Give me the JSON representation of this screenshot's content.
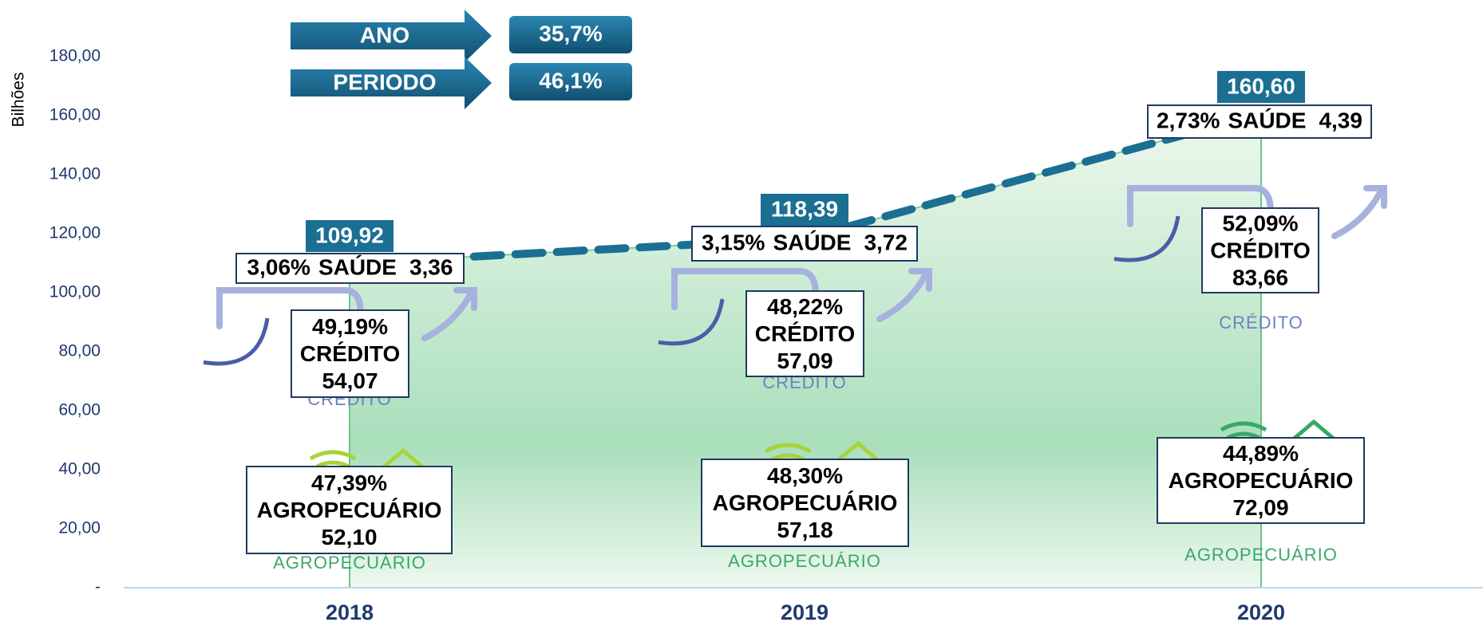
{
  "chart_data": {
    "type": "area",
    "y_label": "Bilhões",
    "categories": [
      "2018",
      "2019",
      "2020"
    ],
    "values": [
      109.92,
      118.39,
      160.6
    ],
    "value_labels": [
      "109,92",
      "118,39",
      "160,60"
    ],
    "color": "#1b6f93",
    "ylim": [
      0,
      180
    ],
    "yticks": [
      {
        "value": 0,
        "label": "-"
      },
      {
        "value": 20,
        "label": "20,00"
      },
      {
        "value": 40,
        "label": "40,00"
      },
      {
        "value": 60,
        "label": "60,00"
      },
      {
        "value": 80,
        "label": "80,00"
      },
      {
        "value": 100,
        "label": "100,00"
      },
      {
        "value": 120,
        "label": "120,00"
      },
      {
        "value": 140,
        "label": "140,00"
      },
      {
        "value": 160,
        "label": "160,00"
      },
      {
        "value": 180,
        "label": "180,00"
      }
    ],
    "breakdown": [
      {
        "name": "SAÚDE",
        "shares": [
          3.06,
          3.15,
          2.73
        ],
        "share_labels": [
          "3,06%",
          "3,15%",
          "2,73%"
        ],
        "values": [
          3.36,
          3.72,
          4.39
        ],
        "value_labels": [
          "3,36",
          "3,72",
          "4,39"
        ]
      },
      {
        "name": "CRÉDITO",
        "shares": [
          49.19,
          48.22,
          52.09
        ],
        "share_labels": [
          "49,19%",
          "48,22%",
          "52,09%"
        ],
        "values": [
          54.07,
          57.09,
          83.66
        ],
        "value_labels": [
          "54,07",
          "57,09",
          "83,66"
        ]
      },
      {
        "name": "AGROPECUÁRIO",
        "shares": [
          47.39,
          48.3,
          44.89
        ],
        "share_labels": [
          "47,39%",
          "48,30%",
          "44,89%"
        ],
        "values": [
          52.1,
          57.18,
          72.09
        ],
        "value_labels": [
          "52,10",
          "57,18",
          "72,09"
        ]
      }
    ],
    "icon_labels": [
      "CRÉDITO",
      "AGROPECUÁRIO"
    ],
    "growth": [
      {
        "label": "ANO",
        "value": 35.7,
        "value_label": "35,7%"
      },
      {
        "label": "PERIODO",
        "value": 46.1,
        "value_label": "46,1%"
      }
    ]
  }
}
